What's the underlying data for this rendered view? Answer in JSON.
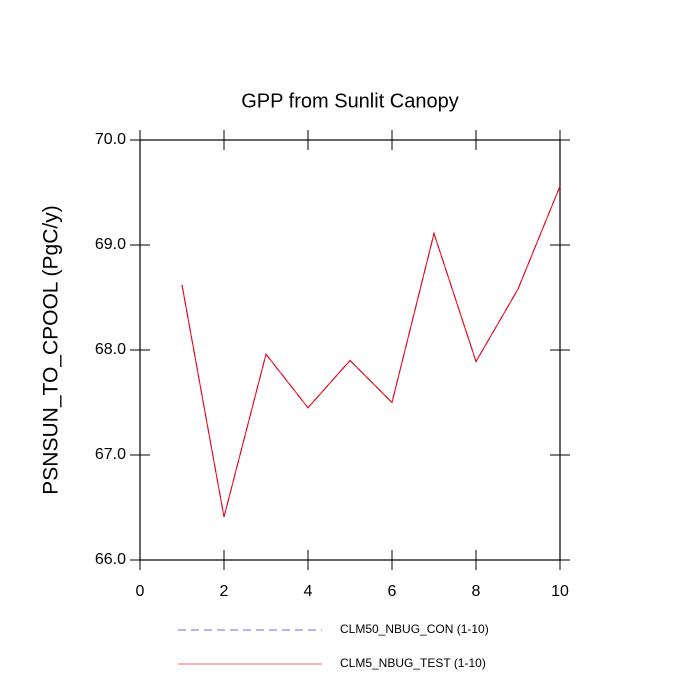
{
  "chart_data": {
    "type": "line",
    "title": "GPP from Sunlit Canopy",
    "y_label": "PSNSUN_TO_CPOOL  (PgC/y)",
    "x": [
      1,
      2,
      3,
      4,
      5,
      6,
      7,
      8,
      9,
      10
    ],
    "series": [
      {
        "name": "CLM50_NBUG_CON (1-10)",
        "color": "#0000ff",
        "dash": true,
        "values": [
          68.62,
          66.41,
          67.96,
          67.45,
          67.9,
          67.5,
          69.11,
          67.89,
          68.58,
          69.56
        ]
      },
      {
        "name": "CLM5_NBUG_TEST (1-10)",
        "color": "#ff0000",
        "dash": false,
        "values": [
          68.62,
          66.41,
          67.96,
          67.45,
          67.9,
          67.5,
          69.11,
          67.89,
          68.58,
          69.56
        ]
      }
    ],
    "xlim": [
      0,
      10
    ],
    "xticks": [
      0,
      2,
      4,
      6,
      8,
      10
    ],
    "ylim": [
      66,
      70
    ],
    "yticks": [
      {
        "value": 66,
        "label": "66.0"
      },
      {
        "value": 67,
        "label": "67.0"
      },
      {
        "value": 68,
        "label": "68.0"
      },
      {
        "value": 69,
        "label": "69.0"
      },
      {
        "value": 70,
        "label": "70.0"
      }
    ]
  }
}
